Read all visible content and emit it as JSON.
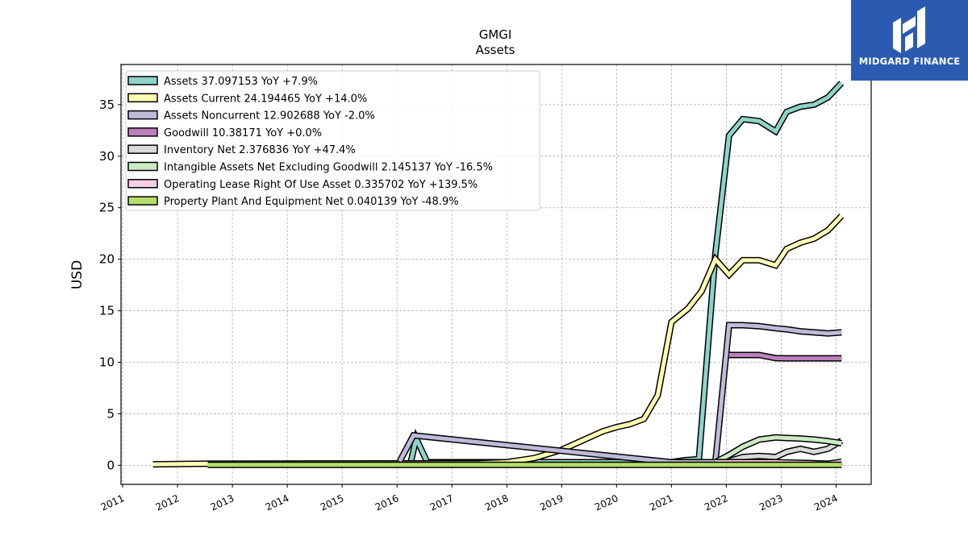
{
  "brand": {
    "name": "MIDGARD FINANCE",
    "bg": "#2a5bb1",
    "icon": "midgard-logo-icon"
  },
  "chart_data": {
    "type": "line",
    "title": "GMGI",
    "subtitle": "Assets",
    "xlabel": "",
    "ylabel": "USD",
    "xlim": [
      2010.97,
      2024.64
    ],
    "ylim": [
      -1.85,
      38.9
    ],
    "x_ticks": [
      "2011",
      "2012",
      "2013",
      "2014",
      "2015",
      "2016",
      "2017",
      "2018",
      "2019",
      "2020",
      "2021",
      "2022",
      "2023",
      "2024"
    ],
    "y_ticks": [
      "0",
      "5",
      "10",
      "15",
      "20",
      "25",
      "30",
      "35"
    ],
    "grid": true,
    "legend_position": "top-left",
    "series": [
      {
        "name": "Assets",
        "legend": "Assets  37.097153 YoY +7.9%",
        "color": "#8dd3c7",
        "points": [
          [
            2016.25,
            0.3
          ],
          [
            2016.35,
            2.6
          ],
          [
            2016.55,
            0.3
          ],
          [
            2020.99,
            0.3
          ],
          [
            2021.25,
            0.5
          ],
          [
            2021.5,
            0.6
          ],
          [
            2021.8,
            20.5
          ],
          [
            2022.05,
            32.0
          ],
          [
            2022.3,
            33.6
          ],
          [
            2022.6,
            33.4
          ],
          [
            2022.9,
            32.4
          ],
          [
            2023.1,
            34.3
          ],
          [
            2023.35,
            34.8
          ],
          [
            2023.6,
            35.0
          ],
          [
            2023.85,
            35.7
          ],
          [
            2024.1,
            37.1
          ]
        ]
      },
      {
        "name": "Assets Current",
        "legend": "Assets Current  24.194465 YoY +14.0%",
        "color": "#ffffb3",
        "points": [
          [
            2011.55,
            0.1
          ],
          [
            2012.55,
            0.15
          ],
          [
            2017.5,
            0.2
          ],
          [
            2018.0,
            0.3
          ],
          [
            2018.5,
            0.7
          ],
          [
            2019.0,
            1.5
          ],
          [
            2019.5,
            2.7
          ],
          [
            2019.75,
            3.3
          ],
          [
            2020.0,
            3.7
          ],
          [
            2020.25,
            4.0
          ],
          [
            2020.5,
            4.5
          ],
          [
            2020.75,
            6.8
          ],
          [
            2021.0,
            13.9
          ],
          [
            2021.3,
            15.2
          ],
          [
            2021.55,
            16.9
          ],
          [
            2021.8,
            20.0
          ],
          [
            2022.05,
            18.5
          ],
          [
            2022.3,
            19.9
          ],
          [
            2022.6,
            19.9
          ],
          [
            2022.9,
            19.4
          ],
          [
            2023.1,
            21.0
          ],
          [
            2023.35,
            21.6
          ],
          [
            2023.6,
            22.0
          ],
          [
            2023.85,
            22.8
          ],
          [
            2024.1,
            24.2
          ]
        ]
      },
      {
        "name": "Assets Noncurrent",
        "legend": "Assets Noncurrent  12.902688 YoY -2.0%",
        "color": "#bebada",
        "points": [
          [
            2016.05,
            0.4
          ],
          [
            2016.3,
            2.9
          ],
          [
            2020.99,
            0.3
          ],
          [
            2021.8,
            0.3
          ],
          [
            2022.05,
            13.6
          ],
          [
            2022.3,
            13.6
          ],
          [
            2022.6,
            13.5
          ],
          [
            2022.9,
            13.3
          ],
          [
            2023.1,
            13.2
          ],
          [
            2023.35,
            13.0
          ],
          [
            2023.6,
            12.9
          ],
          [
            2023.85,
            12.8
          ],
          [
            2024.1,
            12.9
          ]
        ]
      },
      {
        "name": "Goodwill",
        "legend": "Goodwill  10.38171 YoY +0.0%",
        "color": "#bc80bd",
        "points": [
          [
            2022.05,
            10.7
          ],
          [
            2022.3,
            10.7
          ],
          [
            2022.6,
            10.7
          ],
          [
            2022.9,
            10.4
          ],
          [
            2023.1,
            10.38
          ],
          [
            2024.1,
            10.38
          ]
        ]
      },
      {
        "name": "Inventory Net",
        "legend": "Inventory Net  2.376836 YoY +47.4%",
        "color": "#d9d9d9",
        "points": [
          [
            2021.8,
            0.2
          ],
          [
            2022.05,
            0.4
          ],
          [
            2022.3,
            0.8
          ],
          [
            2022.6,
            0.9
          ],
          [
            2022.9,
            0.8
          ],
          [
            2023.1,
            1.3
          ],
          [
            2023.35,
            1.6
          ],
          [
            2023.6,
            1.3
          ],
          [
            2023.85,
            1.6
          ],
          [
            2024.1,
            2.4
          ]
        ]
      },
      {
        "name": "Intangible Assets Net Excluding Goodwill",
        "legend": "Intangible Assets Net Excluding Goodwill  2.145137 YoY -16.5%",
        "color": "#ccebc5",
        "points": [
          [
            2021.8,
            0.3
          ],
          [
            2022.05,
            1.0
          ],
          [
            2022.3,
            1.8
          ],
          [
            2022.6,
            2.5
          ],
          [
            2022.9,
            2.7
          ],
          [
            2023.1,
            2.65
          ],
          [
            2023.35,
            2.6
          ],
          [
            2023.6,
            2.5
          ],
          [
            2023.85,
            2.35
          ],
          [
            2024.1,
            2.15
          ]
        ]
      },
      {
        "name": "Operating Lease Right Of Use Asset",
        "legend": "Operating Lease Right Of Use Asset  0.335702 YoY +139.5%",
        "color": "#fccde5",
        "points": [
          [
            2021.8,
            0.3
          ],
          [
            2022.3,
            0.3
          ],
          [
            2022.9,
            0.3
          ],
          [
            2023.6,
            0.2
          ],
          [
            2023.85,
            0.15
          ],
          [
            2024.1,
            0.34
          ]
        ]
      },
      {
        "name": "Property Plant And Equipment Net",
        "legend": "Property Plant And Equipment Net  0.040139 YoY -48.9%",
        "color": "#b3de69",
        "points": [
          [
            2012.55,
            0.05
          ],
          [
            2024.1,
            0.04
          ]
        ]
      }
    ]
  }
}
